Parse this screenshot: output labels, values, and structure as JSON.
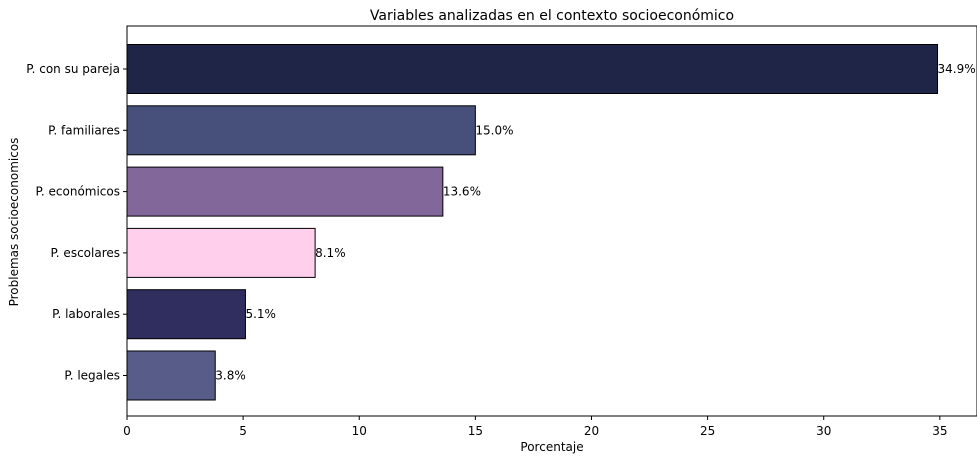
{
  "chart_data": {
    "type": "bar",
    "orientation": "horizontal",
    "title": "Variables analizadas en el contexto socioeconómico",
    "xlabel": "Porcentaje",
    "ylabel": "Problemas socioeconomicos",
    "categories": [
      "P. con su pareja",
      "P. familiares",
      "P. económicos",
      "P. escolares ",
      "P. laborales",
      "P. legales"
    ],
    "values": [
      34.9,
      15.0,
      13.6,
      8.1,
      5.1,
      3.8
    ],
    "value_labels": [
      "34.9%",
      "15.0%",
      "13.6%",
      "8.1%",
      "5.1%",
      "3.8%"
    ],
    "bar_colors": [
      "#1f2547",
      "#46507a",
      "#82679a",
      "#ffcfec",
      "#2f2e5f",
      "#575c88"
    ],
    "xlim": [
      0,
      36.6
    ],
    "xticks": [
      0,
      5,
      10,
      15,
      20,
      25,
      30,
      35
    ],
    "grid": false,
    "legend": "none"
  }
}
